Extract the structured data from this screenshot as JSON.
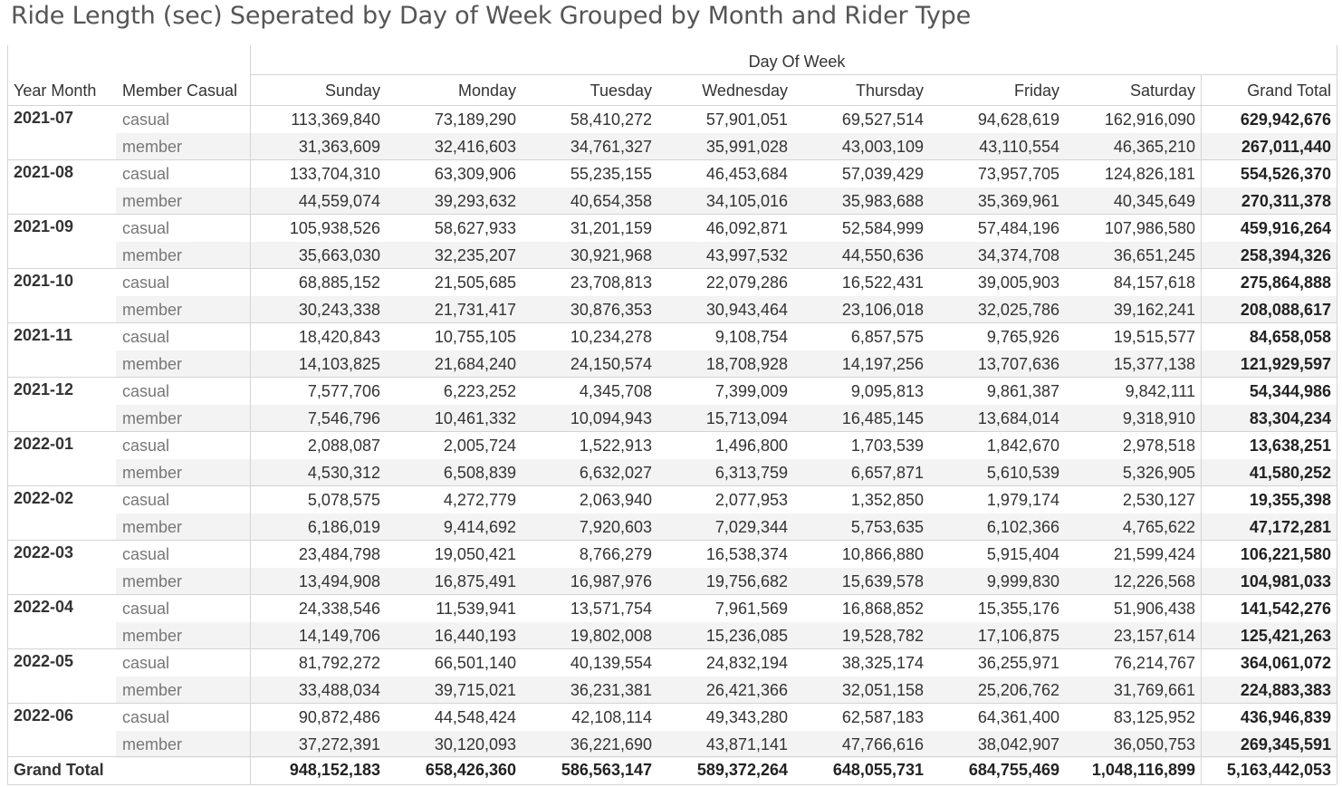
{
  "title": "Ride Length (sec) Seperated by Day of Week Grouped by Month and Rider Type",
  "chart_data": {
    "type": "table",
    "title": "Ride Length (sec) Seperated by Day of Week Grouped by Month and Rider Type",
    "column_group_label": "Day Of Week",
    "row_headers": [
      "Year Month",
      "Member Casual"
    ],
    "columns": [
      "Sunday",
      "Monday",
      "Tuesday",
      "Wednesday",
      "Thursday",
      "Friday",
      "Saturday",
      "Grand Total"
    ],
    "months": [
      {
        "month": "2021-07",
        "rows": [
          {
            "type": "casual",
            "values": [
              "113,369,840",
              "73,189,290",
              "58,410,272",
              "57,901,051",
              "69,527,514",
              "94,628,619",
              "162,916,090",
              "629,942,676"
            ]
          },
          {
            "type": "member",
            "values": [
              "31,363,609",
              "32,416,603",
              "34,761,327",
              "35,991,028",
              "43,003,109",
              "43,110,554",
              "46,365,210",
              "267,011,440"
            ]
          }
        ]
      },
      {
        "month": "2021-08",
        "rows": [
          {
            "type": "casual",
            "values": [
              "133,704,310",
              "63,309,906",
              "55,235,155",
              "46,453,684",
              "57,039,429",
              "73,957,705",
              "124,826,181",
              "554,526,370"
            ]
          },
          {
            "type": "member",
            "values": [
              "44,559,074",
              "39,293,632",
              "40,654,358",
              "34,105,016",
              "35,983,688",
              "35,369,961",
              "40,345,649",
              "270,311,378"
            ]
          }
        ]
      },
      {
        "month": "2021-09",
        "rows": [
          {
            "type": "casual",
            "values": [
              "105,938,526",
              "58,627,933",
              "31,201,159",
              "46,092,871",
              "52,584,999",
              "57,484,196",
              "107,986,580",
              "459,916,264"
            ]
          },
          {
            "type": "member",
            "values": [
              "35,663,030",
              "32,235,207",
              "30,921,968",
              "43,997,532",
              "44,550,636",
              "34,374,708",
              "36,651,245",
              "258,394,326"
            ]
          }
        ]
      },
      {
        "month": "2021-10",
        "rows": [
          {
            "type": "casual",
            "values": [
              "68,885,152",
              "21,505,685",
              "23,708,813",
              "22,079,286",
              "16,522,431",
              "39,005,903",
              "84,157,618",
              "275,864,888"
            ]
          },
          {
            "type": "member",
            "values": [
              "30,243,338",
              "21,731,417",
              "30,876,353",
              "30,943,464",
              "23,106,018",
              "32,025,786",
              "39,162,241",
              "208,088,617"
            ]
          }
        ]
      },
      {
        "month": "2021-11",
        "rows": [
          {
            "type": "casual",
            "values": [
              "18,420,843",
              "10,755,105",
              "10,234,278",
              "9,108,754",
              "6,857,575",
              "9,765,926",
              "19,515,577",
              "84,658,058"
            ]
          },
          {
            "type": "member",
            "values": [
              "14,103,825",
              "21,684,240",
              "24,150,574",
              "18,708,928",
              "14,197,256",
              "13,707,636",
              "15,377,138",
              "121,929,597"
            ]
          }
        ]
      },
      {
        "month": "2021-12",
        "rows": [
          {
            "type": "casual",
            "values": [
              "7,577,706",
              "6,223,252",
              "4,345,708",
              "7,399,009",
              "9,095,813",
              "9,861,387",
              "9,842,111",
              "54,344,986"
            ]
          },
          {
            "type": "member",
            "values": [
              "7,546,796",
              "10,461,332",
              "10,094,943",
              "15,713,094",
              "16,485,145",
              "13,684,014",
              "9,318,910",
              "83,304,234"
            ]
          }
        ]
      },
      {
        "month": "2022-01",
        "rows": [
          {
            "type": "casual",
            "values": [
              "2,088,087",
              "2,005,724",
              "1,522,913",
              "1,496,800",
              "1,703,539",
              "1,842,670",
              "2,978,518",
              "13,638,251"
            ]
          },
          {
            "type": "member",
            "values": [
              "4,530,312",
              "6,508,839",
              "6,632,027",
              "6,313,759",
              "6,657,871",
              "5,610,539",
              "5,326,905",
              "41,580,252"
            ]
          }
        ]
      },
      {
        "month": "2022-02",
        "rows": [
          {
            "type": "casual",
            "values": [
              "5,078,575",
              "4,272,779",
              "2,063,940",
              "2,077,953",
              "1,352,850",
              "1,979,174",
              "2,530,127",
              "19,355,398"
            ]
          },
          {
            "type": "member",
            "values": [
              "6,186,019",
              "9,414,692",
              "7,920,603",
              "7,029,344",
              "5,753,635",
              "6,102,366",
              "4,765,622",
              "47,172,281"
            ]
          }
        ]
      },
      {
        "month": "2022-03",
        "rows": [
          {
            "type": "casual",
            "values": [
              "23,484,798",
              "19,050,421",
              "8,766,279",
              "16,538,374",
              "10,866,880",
              "5,915,404",
              "21,599,424",
              "106,221,580"
            ]
          },
          {
            "type": "member",
            "values": [
              "13,494,908",
              "16,875,491",
              "16,987,976",
              "19,756,682",
              "15,639,578",
              "9,999,830",
              "12,226,568",
              "104,981,033"
            ]
          }
        ]
      },
      {
        "month": "2022-04",
        "rows": [
          {
            "type": "casual",
            "values": [
              "24,338,546",
              "11,539,941",
              "13,571,754",
              "7,961,569",
              "16,868,852",
              "15,355,176",
              "51,906,438",
              "141,542,276"
            ]
          },
          {
            "type": "member",
            "values": [
              "14,149,706",
              "16,440,193",
              "19,802,008",
              "15,236,085",
              "19,528,782",
              "17,106,875",
              "23,157,614",
              "125,421,263"
            ]
          }
        ]
      },
      {
        "month": "2022-05",
        "rows": [
          {
            "type": "casual",
            "values": [
              "81,792,272",
              "66,501,140",
              "40,139,554",
              "24,832,194",
              "38,325,174",
              "36,255,971",
              "76,214,767",
              "364,061,072"
            ]
          },
          {
            "type": "member",
            "values": [
              "33,488,034",
              "39,715,021",
              "36,231,381",
              "26,421,366",
              "32,051,158",
              "25,206,762",
              "31,769,661",
              "224,883,383"
            ]
          }
        ]
      },
      {
        "month": "2022-06",
        "rows": [
          {
            "type": "casual",
            "values": [
              "90,872,486",
              "44,548,424",
              "42,108,114",
              "49,343,280",
              "62,587,183",
              "64,361,400",
              "83,125,952",
              "436,946,839"
            ]
          },
          {
            "type": "member",
            "values": [
              "37,272,391",
              "30,120,093",
              "36,221,690",
              "43,871,141",
              "47,766,616",
              "38,042,907",
              "36,050,753",
              "269,345,591"
            ]
          }
        ]
      }
    ],
    "grand_total": {
      "label": "Grand Total",
      "values": [
        "948,152,183",
        "658,426,360",
        "586,563,147",
        "589,372,264",
        "648,055,731",
        "684,755,469",
        "1,048,116,899",
        "5,163,442,053"
      ]
    }
  }
}
